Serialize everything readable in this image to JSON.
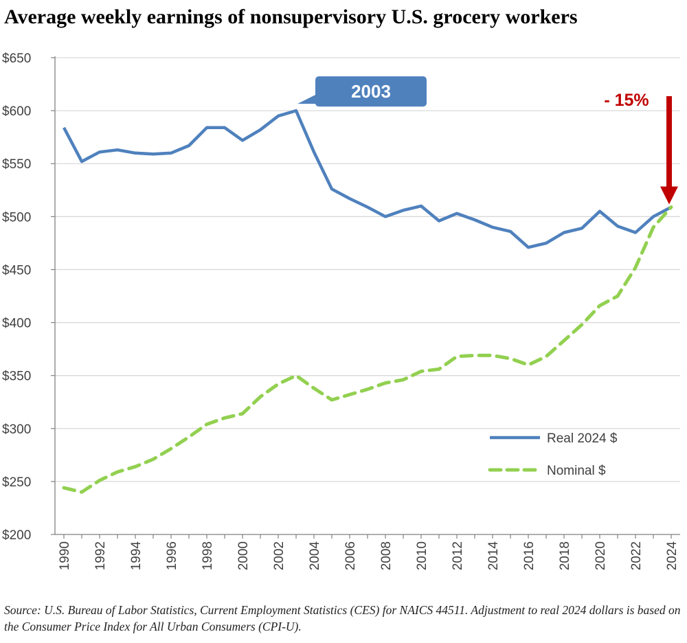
{
  "chart_data": {
    "type": "line",
    "title": "Average weekly earnings of nonsupervisory U.S. grocery workers",
    "xlabel": "",
    "ylabel": "",
    "ylim": [
      200,
      650
    ],
    "xlim": [
      1990,
      2024
    ],
    "y_ticks": [
      200,
      250,
      300,
      350,
      400,
      450,
      500,
      550,
      600,
      650
    ],
    "y_tick_labels": [
      "$200",
      "$250",
      "$300",
      "$350",
      "$400",
      "$450",
      "$500",
      "$550",
      "$600",
      "$650"
    ],
    "x_ticks": [
      1990,
      1992,
      1994,
      1996,
      1998,
      2000,
      2002,
      2004,
      2006,
      2008,
      2010,
      2012,
      2014,
      2016,
      2018,
      2020,
      2022,
      2024
    ],
    "x_tick_labels": [
      "1990",
      "1992",
      "1994",
      "1996",
      "1998",
      "2000",
      "2002",
      "2004",
      "2006",
      "2008",
      "2010",
      "2012",
      "2014",
      "2016",
      "2018",
      "2020",
      "2022",
      "2024"
    ],
    "grid": true,
    "legend_position": "bottom-right",
    "x": [
      1990,
      1991,
      1992,
      1993,
      1994,
      1995,
      1996,
      1997,
      1998,
      1999,
      2000,
      2001,
      2002,
      2003,
      2004,
      2005,
      2006,
      2007,
      2008,
      2009,
      2010,
      2011,
      2012,
      2013,
      2014,
      2015,
      2016,
      2017,
      2018,
      2019,
      2020,
      2021,
      2022,
      2023,
      2024
    ],
    "series": [
      {
        "name": "Real 2024 $",
        "style": "solid",
        "color": "#4f81bd",
        "values": [
          584,
          552,
          561,
          563,
          560,
          559,
          560,
          567,
          584,
          584,
          572,
          582,
          595,
          600,
          561,
          526,
          517,
          509,
          500,
          506,
          510,
          496,
          503,
          497,
          490,
          486,
          471,
          475,
          485,
          489,
          505,
          491,
          485,
          500,
          509
        ]
      },
      {
        "name": "Nominal $",
        "style": "dashed",
        "color": "#92d050",
        "values": [
          244,
          240,
          251,
          259,
          264,
          271,
          281,
          292,
          304,
          310,
          314,
          330,
          342,
          350,
          338,
          327,
          332,
          337,
          343,
          346,
          354,
          356,
          368,
          369,
          369,
          366,
          360,
          368,
          383,
          398,
          416,
          425,
          452,
          490,
          509
        ]
      }
    ],
    "annotations": {
      "peak_label": "2003",
      "peak_year": 2003,
      "peak_value": 600,
      "change_label": "- 15%",
      "change_year": 2024,
      "callout_color": "#4f81bd",
      "arrow_color": "#c00000"
    }
  },
  "source_note": "Source: U.S. Bureau of Labor Statistics, Current Employment Statistics (CES) for NAICS 44511. Adjustment to real 2024 dollars is based on the Consumer Price Index for All Urban Consumers (CPI-U)."
}
